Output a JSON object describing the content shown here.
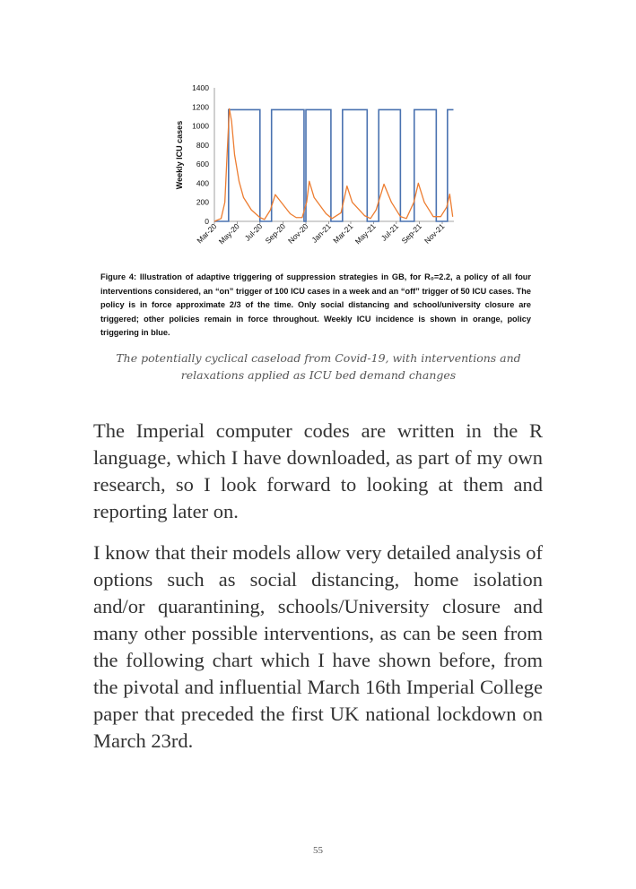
{
  "chart_data": {
    "type": "line",
    "ylabel": "Weekly ICU cases",
    "xlabel": "",
    "ylim": [
      0,
      1400
    ],
    "yticks": [
      "0",
      "200",
      "400",
      "600",
      "800",
      "1000",
      "1200",
      "1400"
    ],
    "xticks": [
      "Mar-20",
      "May-20",
      "Jul-20",
      "Sep-20",
      "Nov-20",
      "Jan-21",
      "Mar-21",
      "May-21",
      "Jul-21",
      "Sep-21",
      "Nov-21"
    ],
    "xtick_dates": [
      "2020-03-01",
      "2020-05-01",
      "2020-07-01",
      "2020-09-01",
      "2020-11-01",
      "2021-01-01",
      "2021-03-01",
      "2021-05-01",
      "2021-07-01",
      "2021-09-01",
      "2021-11-01"
    ],
    "grid": false,
    "legend": "none",
    "series": [
      {
        "color": "#ed7d31",
        "points": [
          [
            "2020-03-01",
            0
          ],
          [
            "2020-03-19",
            30
          ],
          [
            "2020-03-29",
            200
          ],
          [
            "2020-04-04",
            700
          ],
          [
            "2020-04-10",
            1180
          ],
          [
            "2020-04-16",
            1050
          ],
          [
            "2020-04-24",
            700
          ],
          [
            "2020-05-06",
            420
          ],
          [
            "2020-05-18",
            250
          ],
          [
            "2020-06-08",
            120
          ],
          [
            "2020-07-01",
            40
          ],
          [
            "2020-07-13",
            20
          ],
          [
            "2020-07-29",
            120
          ],
          [
            "2020-08-11",
            280
          ],
          [
            "2020-08-27",
            200
          ],
          [
            "2020-09-20",
            80
          ],
          [
            "2020-10-06",
            40
          ],
          [
            "2020-10-22",
            40
          ],
          [
            "2020-11-03",
            200
          ],
          [
            "2020-11-10",
            420
          ],
          [
            "2020-11-23",
            250
          ],
          [
            "2020-12-25",
            80
          ],
          [
            "2021-01-10",
            30
          ],
          [
            "2021-02-03",
            90
          ],
          [
            "2021-02-19",
            370
          ],
          [
            "2021-03-05",
            200
          ],
          [
            "2021-04-07",
            60
          ],
          [
            "2021-04-23",
            30
          ],
          [
            "2021-05-08",
            120
          ],
          [
            "2021-05-29",
            390
          ],
          [
            "2021-06-18",
            200
          ],
          [
            "2021-07-12",
            50
          ],
          [
            "2021-07-28",
            30
          ],
          [
            "2021-08-17",
            200
          ],
          [
            "2021-08-29",
            400
          ],
          [
            "2021-09-14",
            200
          ],
          [
            "2021-10-08",
            50
          ],
          [
            "2021-10-28",
            50
          ],
          [
            "2021-11-13",
            150
          ],
          [
            "2021-11-21",
            285
          ],
          [
            "2021-11-29",
            50
          ]
        ]
      },
      {
        "color": "#4a72b0",
        "on_level": 1170,
        "policy_on_periods": [
          [
            "2020-04-08",
            "2020-07-01"
          ],
          [
            "2020-08-01",
            "2020-10-27"
          ],
          [
            "2020-11-01",
            "2021-01-07"
          ],
          [
            "2021-02-07",
            "2021-04-14"
          ],
          [
            "2021-05-15",
            "2021-07-12"
          ],
          [
            "2021-08-18",
            "2021-10-16"
          ],
          [
            "2021-11-15",
            "2021-12-01"
          ]
        ]
      }
    ]
  },
  "figure_caption": {
    "label": "Figure 4:",
    "text": " Illustration of adaptive triggering of suppression strategies in GB, for R₀=2.2, a policy of all four interventions considered, an “on” trigger of 100 ICU cases in a week and an “off” trigger of 50 ICU cases.  The policy is in force approximate 2/3 of the time. Only social distancing and school/university closure are triggered; other policies remain in force throughout. Weekly ICU incidence is shown in orange, policy triggering in blue."
  },
  "image_caption": "The potentially cyclical caseload from Covid-19, with interventions and relaxations applied as ICU bed demand changes",
  "paragraphs": [
    "The Imperial computer codes are written in the R language, which I have downloaded, as part of my own research, so I look forward to looking at them and reporting later on.",
    "I know that their models allow very detailed analysis of options such as social distancing, home isolation and/or quarantining, schools/University closure and many other possible interventions, as can be seen from the following chart which I have shown before, from the pivotal and influential March 16th Imperial College paper that preceded the first UK national lockdown on March 23rd."
  ],
  "page_number": "55"
}
